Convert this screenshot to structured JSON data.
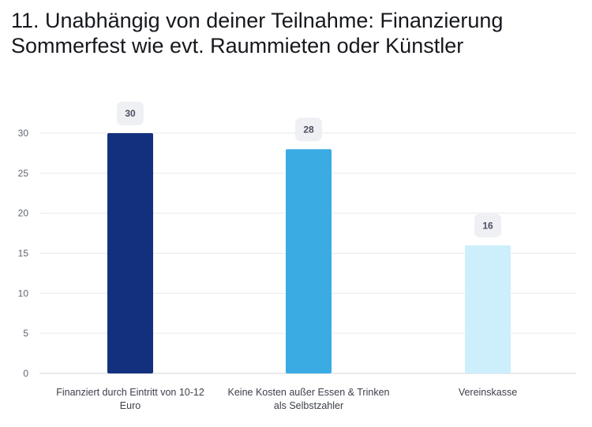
{
  "chart_data": {
    "type": "bar",
    "title": "11. Unabhängig von deiner Teilnahme: Finanzierung Sommerfest wie evt. Raummieten oder Künstler",
    "categories": [
      [
        "Finanziert durch Eintritt von 10-12",
        "Euro"
      ],
      [
        "Keine Kosten außer Essen & Trinken",
        "als Selbstzahler"
      ],
      [
        "Vereinskasse"
      ]
    ],
    "values": [
      30,
      28,
      16
    ],
    "colors": [
      "#13307e",
      "#3aabe3",
      "#cdeffb"
    ],
    "ylim": [
      0,
      30
    ],
    "yticks": [
      0,
      5,
      10,
      15,
      20,
      25,
      30
    ],
    "grid": true,
    "data_labels": true
  }
}
